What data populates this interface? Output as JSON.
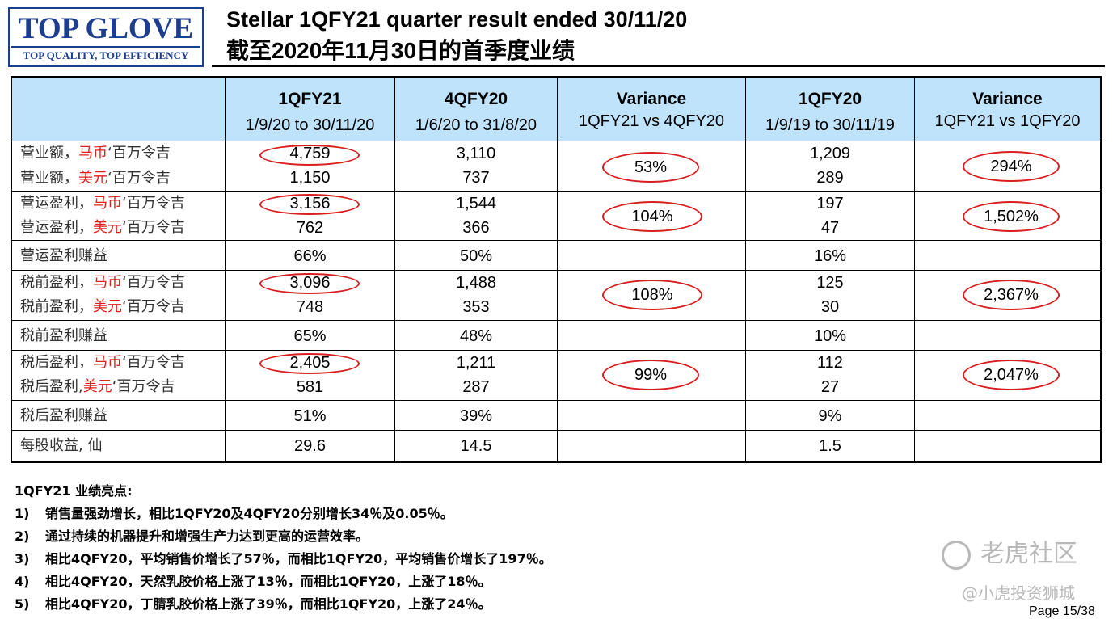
{
  "logo": {
    "name": "TOP GLOVE",
    "tagline": "TOP QUALITY, TOP EFFICIENCY",
    "color": "#1d3d8f"
  },
  "title": "Stellar 1QFY21 quarter result ended 30/11/20",
  "subtitle": "截至2020年11月30日的首季度业绩",
  "columns": [
    {
      "name": "1QFY21",
      "sub": "1/9/20 to 30/11/20"
    },
    {
      "name": "4QFY20",
      "sub": "1/6/20 to 31/8/20"
    },
    {
      "name": "Variance",
      "sub": "1QFY21 vs 4QFY20"
    },
    {
      "name": "1QFY20",
      "sub": "1/9/19 to 30/11/19"
    },
    {
      "name": "Variance",
      "sub": "1QFY21 vs 1QFY20"
    }
  ],
  "rows": {
    "revenue": {
      "label_myr": {
        "a": "营业额，",
        "b": "马币",
        "c": "‘百万令吉"
      },
      "label_usd": {
        "a": "营业额，",
        "b": "美元",
        "c": "‘百万令吉"
      },
      "q1fy21": [
        "4,759",
        "1,150"
      ],
      "q4fy20": [
        "3,110",
        "737"
      ],
      "var1": "53%",
      "q1fy20": [
        "1,209",
        "289"
      ],
      "var2": "294%"
    },
    "op_profit": {
      "label_myr": {
        "a": "营运盈利，",
        "b": "马币",
        "c": "‘百万令吉"
      },
      "label_usd": {
        "a": "营运盈利，",
        "b": "美元",
        "c": "‘百万令吉"
      },
      "q1fy21": [
        "3,156",
        "762"
      ],
      "q4fy20": [
        "1,544",
        "366"
      ],
      "var1": "104%",
      "q1fy20": [
        "197",
        "47"
      ],
      "var2": "1,502%"
    },
    "op_margin": {
      "label": "营运盈利赚益",
      "q1fy21": "66%",
      "q4fy20": "50%",
      "q1fy20": "16%"
    },
    "pbt": {
      "label_myr": {
        "a": "税前盈利，",
        "b": "马币",
        "c": "‘百万令吉"
      },
      "label_usd": {
        "a": "税前盈利，",
        "b": "美元",
        "c": "‘百万令吉"
      },
      "q1fy21": [
        "3,096",
        "748"
      ],
      "q4fy20": [
        "1,488",
        "353"
      ],
      "var1": "108%",
      "q1fy20": [
        "125",
        "30"
      ],
      "var2": "2,367%"
    },
    "pbt_margin": {
      "label": "税前盈利赚益",
      "q1fy21": "65%",
      "q4fy20": "48%",
      "q1fy20": "10%"
    },
    "pat": {
      "label_myr": {
        "a": "税后盈利，",
        "b": "马币",
        "c": "‘百万令吉"
      },
      "label_usd": {
        "a": "税后盈利,",
        "b": "美元",
        "c": "‘百万令吉"
      },
      "q1fy21": [
        "2,405",
        "581"
      ],
      "q4fy20": [
        "1,211",
        "287"
      ],
      "var1": "99%",
      "q1fy20": [
        "112",
        "27"
      ],
      "var2": "2,047%"
    },
    "pat_margin": {
      "label": "税后盈利赚益",
      "q1fy21": "51%",
      "q4fy20": "39%",
      "q1fy20": "9%"
    },
    "eps": {
      "label": "每股收益, 仙",
      "q1fy21": "29.6",
      "q4fy20": "14.5",
      "q1fy20": "1.5"
    }
  },
  "highlights": {
    "heading": "1QFY21 业绩亮点:",
    "items": [
      {
        "n": "1)",
        "text": "销售量强劲增长，相比1QFY20及4QFY20分别增长34％及0.05％。"
      },
      {
        "n": "2)",
        "text": "通过持续的机器提升和增强生产力达到更高的运营效率。"
      },
      {
        "n": "3)",
        "text": "相比4QFY20，平均销售价增长了57％，而相比1QFY20，平均销售价增长了197％。"
      },
      {
        "n": "4)",
        "text": "相比4QFY20，天然乳胶价格上涨了13％，而相比1QFY20，上涨了18％。"
      },
      {
        "n": "5)",
        "text": "相比4QFY20，丁腈乳胶价格上涨了39％，而相比1QFY20，上涨了24％。"
      }
    ]
  },
  "watermark": {
    "brand": "老虎社区",
    "handle": "@小虎投资狮城"
  },
  "page": "Page 15/38",
  "colors": {
    "header_bg": "#bfe3fa",
    "circle": "#d81e1e",
    "currency_red": "#e0201c"
  }
}
